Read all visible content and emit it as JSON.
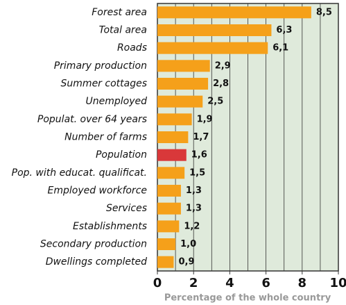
{
  "chart_data": {
    "type": "barh",
    "categories": [
      "Forest area",
      "Total area",
      "Roads",
      "Primary production",
      "Summer cottages",
      "Unemployed",
      "Populat. over 64 years",
      "Number of farms",
      "Population",
      "Pop. with educat. qualificat.",
      "Employed workforce",
      "Services",
      "Establishments",
      "Secondary production",
      "Dwellings completed"
    ],
    "values": [
      8.5,
      6.3,
      6.1,
      2.9,
      2.8,
      2.5,
      1.9,
      1.7,
      1.6,
      1.5,
      1.3,
      1.3,
      1.2,
      1.0,
      0.9
    ],
    "value_labels": [
      "8,5",
      "6,3",
      "6,1",
      "2,9",
      "2,8",
      "2,5",
      "1,9",
      "1,7",
      "1,6",
      "1,5",
      "1,3",
      "1,3",
      "1,2",
      "1,0",
      "0,9"
    ],
    "colors": [
      "#f5a01a",
      "#f5a01a",
      "#f5a01a",
      "#f5a01a",
      "#f5a01a",
      "#f5a01a",
      "#f5a01a",
      "#f5a01a",
      "#d9383a",
      "#f5a01a",
      "#f5a01a",
      "#f5a01a",
      "#f5a01a",
      "#f5a01a",
      "#f5a01a"
    ],
    "xlabel": "Percentage of the whole country",
    "xlim": [
      0,
      10
    ],
    "xticks": [
      0,
      2,
      4,
      6,
      8,
      10
    ],
    "minor_xticks": [
      1,
      3,
      5,
      7,
      9
    ],
    "grid": true
  }
}
